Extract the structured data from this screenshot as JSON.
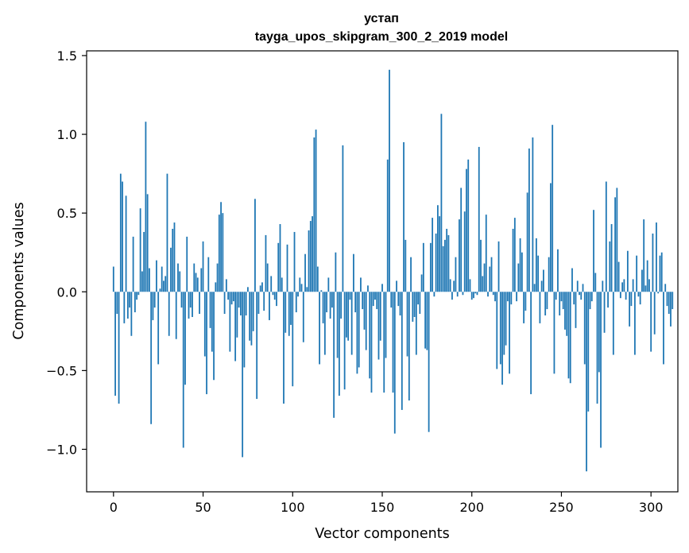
{
  "chart_data": {
    "type": "bar",
    "title": "устап",
    "subtitle": "tayga_upos_skipgram_300_2_2019 model",
    "xlabel": "Vector components",
    "ylabel": "Components values",
    "xlim": [
      -15,
      315
    ],
    "ylim": [
      -1.27,
      1.53
    ],
    "xticks": [
      0,
      50,
      100,
      150,
      200,
      250,
      300
    ],
    "yticks": [
      {
        "value": -1.0,
        "label": "−1.0"
      },
      {
        "value": -0.5,
        "label": "−0.5"
      },
      {
        "value": 0.0,
        "label": "0.0"
      },
      {
        "value": 0.5,
        "label": "0.5"
      },
      {
        "value": 1.0,
        "label": "1.0"
      },
      {
        "value": 1.5,
        "label": "1.5"
      }
    ],
    "grid": false,
    "bar_color": "#1f77b4",
    "values": [
      0.16,
      -0.66,
      -0.14,
      -0.71,
      0.75,
      0.7,
      -0.2,
      0.61,
      -0.17,
      -0.1,
      -0.28,
      0.35,
      -0.13,
      -0.05,
      -0.02,
      0.53,
      0.13,
      0.38,
      1.08,
      0.62,
      0.15,
      -0.84,
      -0.18,
      -0.1,
      0.2,
      -0.46,
      0.02,
      0.16,
      0.07,
      0.1,
      0.75,
      -0.28,
      0.28,
      0.4,
      0.44,
      -0.3,
      0.18,
      0.13,
      -0.1,
      -0.99,
      -0.59,
      0.35,
      -0.17,
      -0.1,
      -0.16,
      0.18,
      0.12,
      0.09,
      -0.14,
      0.15,
      0.32,
      -0.41,
      -0.65,
      0.22,
      -0.23,
      -0.38,
      -0.56,
      0.06,
      0.18,
      0.49,
      0.57,
      0.5,
      -0.14,
      0.08,
      -0.05,
      -0.38,
      -0.08,
      -0.06,
      -0.44,
      -0.29,
      -0.1,
      -0.15,
      -1.05,
      -0.48,
      -0.15,
      0.03,
      -0.31,
      -0.34,
      -0.25,
      0.59,
      -0.68,
      -0.14,
      0.04,
      0.06,
      -0.12,
      0.36,
      0.18,
      -0.18,
      0.1,
      -0.02,
      -0.05,
      -0.09,
      0.31,
      0.43,
      0.09,
      -0.71,
      -0.26,
      0.3,
      -0.28,
      -0.21,
      -0.6,
      0.38,
      -0.13,
      -0.03,
      0.09,
      0.05,
      -0.32,
      0.24,
      0.03,
      0.39,
      0.45,
      0.48,
      0.98,
      1.03,
      0.16,
      -0.46,
      0.01,
      -0.2,
      -0.4,
      -0.13,
      0.09,
      -0.17,
      -0.1,
      -0.8,
      0.25,
      -0.42,
      -0.66,
      -0.17,
      0.93,
      -0.62,
      -0.29,
      -0.31,
      -0.05,
      -0.4,
      0.24,
      -0.13,
      -0.52,
      -0.48,
      0.09,
      -0.11,
      -0.24,
      -0.37,
      0.04,
      -0.55,
      -0.64,
      -0.09,
      -0.05,
      -0.11,
      -0.43,
      -0.31,
      0.05,
      -0.64,
      -0.42,
      0.84,
      1.41,
      -0.1,
      -0.64,
      -0.9,
      0.07,
      -0.09,
      -0.15,
      -0.75,
      0.95,
      0.33,
      -0.41,
      -0.69,
      0.22,
      -0.19,
      -0.16,
      -0.4,
      -0.08,
      -0.14,
      0.11,
      0.31,
      -0.36,
      -0.37,
      -0.89,
      0.31,
      0.47,
      -0.03,
      0.37,
      0.55,
      0.48,
      1.13,
      0.29,
      0.33,
      0.4,
      0.36,
      0.08,
      -0.05,
      0.07,
      0.22,
      -0.03,
      0.46,
      0.66,
      -0.02,
      0.51,
      0.78,
      0.84,
      0.08,
      -0.05,
      -0.04,
      -0.01,
      -0.02,
      0.92,
      0.33,
      0.1,
      0.18,
      0.49,
      -0.03,
      0.16,
      0.22,
      -0.02,
      -0.06,
      -0.49,
      0.32,
      -0.46,
      -0.59,
      -0.4,
      -0.34,
      -0.06,
      -0.52,
      -0.08,
      0.4,
      0.47,
      -0.06,
      0.18,
      0.34,
      0.25,
      -0.2,
      -0.12,
      0.63,
      0.91,
      -0.65,
      0.98,
      0.05,
      0.34,
      0.23,
      -0.2,
      0.07,
      0.14,
      -0.15,
      -0.11,
      0.22,
      0.69,
      1.06,
      -0.52,
      -0.05,
      0.27,
      -0.15,
      -0.06,
      -0.11,
      -0.24,
      -0.28,
      -0.55,
      -0.58,
      0.15,
      -0.08,
      -0.23,
      0.07,
      -0.02,
      -0.05,
      0.05,
      -0.46,
      -1.14,
      -0.76,
      -0.11,
      -0.06,
      0.52,
      0.12,
      -0.71,
      -0.51,
      -0.99,
      0.07,
      -0.26,
      0.7,
      -0.1,
      0.32,
      0.43,
      -0.4,
      0.6,
      0.66,
      0.19,
      -0.04,
      0.06,
      0.08,
      -0.05,
      0.26,
      -0.22,
      -0.09,
      0.08,
      -0.4,
      0.23,
      -0.03,
      -0.08,
      0.14,
      0.46,
      0.04,
      0.2,
      0.08,
      -0.38,
      0.37,
      -0.27,
      0.44,
      -0.01,
      0.23,
      0.25,
      -0.46,
      0.05,
      -0.09,
      -0.14,
      -0.22,
      -0.11
    ]
  }
}
